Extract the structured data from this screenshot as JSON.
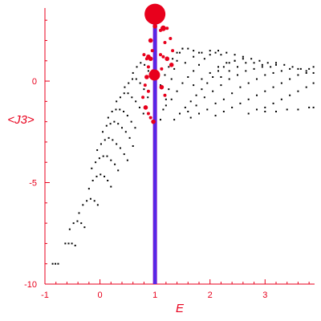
{
  "chart_data": {
    "type": "scatter",
    "title": "",
    "xlabel": "E",
    "ylabel": "<J3>",
    "xlim": [
      -1,
      3.9
    ],
    "ylim": [
      -10,
      3.6
    ],
    "x_ticks": [
      -1,
      0,
      1,
      2,
      3
    ],
    "y_ticks": [
      0,
      -5,
      -10
    ],
    "grid": false,
    "colors": {
      "axis": "#e8001c",
      "points": "#000000",
      "highlight": "#e8001c",
      "marker_line": "#6f1bd9",
      "marker_line_core": "#2a3cff"
    },
    "vertical_marker": {
      "x": 1.0
    },
    "series": [
      {
        "points": [
          [
            -0.86,
            -9.0
          ],
          [
            -0.81,
            -9.0
          ],
          [
            -0.76,
            -9.0
          ],
          [
            -0.63,
            -8.0
          ],
          [
            -0.57,
            -8.0
          ],
          [
            -0.51,
            -8.0
          ],
          [
            -0.45,
            -8.1
          ],
          [
            -0.55,
            -7.3
          ],
          [
            -0.48,
            -7.0
          ],
          [
            -0.41,
            -6.9
          ],
          [
            -0.34,
            -7.0
          ],
          [
            -0.28,
            -7.2
          ],
          [
            -0.38,
            -6.5
          ],
          [
            -0.31,
            -6.1
          ],
          [
            -0.24,
            -5.9
          ],
          [
            -0.17,
            -5.8
          ],
          [
            -0.1,
            -5.9
          ],
          [
            -0.04,
            -6.1
          ],
          [
            -0.2,
            -5.3
          ],
          [
            -0.13,
            -4.9
          ],
          [
            -0.06,
            -4.7
          ],
          [
            0.01,
            -4.6
          ],
          [
            0.08,
            -4.7
          ],
          [
            0.14,
            -4.9
          ],
          [
            0.2,
            -5.2
          ],
          [
            -0.15,
            -4.3
          ],
          [
            -0.08,
            -4.0
          ],
          [
            -0.01,
            -3.8
          ],
          [
            0.06,
            -3.7
          ],
          [
            0.13,
            -3.7
          ],
          [
            0.2,
            -3.9
          ],
          [
            0.27,
            -4.1
          ],
          [
            0.33,
            -4.4
          ],
          [
            -0.05,
            -3.4
          ],
          [
            0.02,
            -3.1
          ],
          [
            0.09,
            -2.9
          ],
          [
            0.16,
            -2.8
          ],
          [
            0.23,
            -2.9
          ],
          [
            0.3,
            -3.1
          ],
          [
            0.37,
            -3.3
          ],
          [
            0.44,
            -3.6
          ],
          [
            0.5,
            -3.9
          ],
          [
            0.05,
            -2.5
          ],
          [
            0.12,
            -2.2
          ],
          [
            0.19,
            -2.1
          ],
          [
            0.26,
            -2.0
          ],
          [
            0.33,
            -2.1
          ],
          [
            0.4,
            -2.3
          ],
          [
            0.47,
            -2.5
          ],
          [
            0.54,
            -2.8
          ],
          [
            0.6,
            -3.2
          ],
          [
            0.15,
            -1.8
          ],
          [
            0.22,
            -1.5
          ],
          [
            0.29,
            -1.4
          ],
          [
            0.36,
            -1.4
          ],
          [
            0.43,
            -1.5
          ],
          [
            0.5,
            -1.7
          ],
          [
            0.57,
            -2.0
          ],
          [
            0.64,
            -2.3
          ],
          [
            0.3,
            -1.0
          ],
          [
            0.37,
            -0.8
          ],
          [
            0.44,
            -0.6
          ],
          [
            0.51,
            -0.6
          ],
          [
            0.58,
            -0.8
          ],
          [
            0.65,
            -1.0
          ],
          [
            0.72,
            -1.3
          ],
          [
            0.79,
            -1.6
          ],
          [
            0.45,
            -0.3
          ],
          [
            0.52,
            -0.1
          ],
          [
            0.59,
            0.1
          ],
          [
            0.66,
            0.1
          ],
          [
            0.73,
            -0.1
          ],
          [
            0.8,
            -0.4
          ],
          [
            0.87,
            -0.8
          ],
          [
            0.6,
            0.4
          ],
          [
            0.67,
            0.7
          ],
          [
            0.74,
            0.9
          ],
          [
            0.81,
            0.8
          ],
          [
            0.88,
            0.5
          ],
          [
            1.1,
            -1.9
          ],
          [
            1.15,
            -1.4
          ],
          [
            1.2,
            -0.9
          ],
          [
            1.25,
            -0.4
          ],
          [
            1.3,
            0.1
          ],
          [
            1.35,
            0.6
          ],
          [
            1.4,
            1.0
          ],
          [
            1.45,
            1.4
          ],
          [
            1.5,
            1.6
          ],
          [
            1.1,
            -0.2
          ],
          [
            1.18,
            0.3
          ],
          [
            1.25,
            0.7
          ],
          [
            1.32,
            1.1
          ],
          [
            1.4,
            1.4
          ],
          [
            1.5,
            1.6
          ],
          [
            1.6,
            1.6
          ],
          [
            1.7,
            1.5
          ],
          [
            1.8,
            1.4
          ],
          [
            1.35,
            -1.9
          ],
          [
            1.45,
            -1.6
          ],
          [
            1.55,
            -1.3
          ],
          [
            1.65,
            -1.0
          ],
          [
            1.75,
            -0.7
          ],
          [
            1.85,
            -0.4
          ],
          [
            1.95,
            -0.1
          ],
          [
            2.05,
            0.2
          ],
          [
            2.15,
            0.5
          ],
          [
            2.25,
            0.7
          ],
          [
            2.35,
            0.9
          ],
          [
            2.45,
            1.0
          ],
          [
            1.2,
            -1.2
          ],
          [
            1.3,
            -0.9
          ],
          [
            1.4,
            -0.5
          ],
          [
            1.5,
            -0.1
          ],
          [
            1.6,
            0.2
          ],
          [
            1.7,
            0.5
          ],
          [
            1.8,
            0.8
          ],
          [
            1.9,
            1.1
          ],
          [
            2.0,
            1.3
          ],
          [
            2.1,
            1.4
          ],
          [
            2.2,
            1.3
          ],
          [
            1.6,
            -1.5
          ],
          [
            1.75,
            -1.2
          ],
          [
            1.9,
            -0.8
          ],
          [
            2.05,
            -0.5
          ],
          [
            2.2,
            -0.2
          ],
          [
            2.35,
            0.1
          ],
          [
            2.5,
            0.3
          ],
          [
            2.65,
            0.5
          ],
          [
            2.8,
            0.6
          ],
          [
            2.95,
            0.7
          ],
          [
            1.7,
            -0.2
          ],
          [
            1.85,
            0.1
          ],
          [
            2.0,
            0.4
          ],
          [
            2.15,
            0.7
          ],
          [
            2.3,
            0.9
          ],
          [
            2.45,
            1.0
          ],
          [
            2.6,
            1.1
          ],
          [
            2.75,
            1.1
          ],
          [
            2.9,
            1.0
          ],
          [
            3.05,
            0.9
          ],
          [
            3.2,
            0.8
          ],
          [
            1.55,
            0.9
          ],
          [
            1.7,
            1.2
          ],
          [
            1.85,
            1.4
          ],
          [
            2.0,
            1.5
          ],
          [
            2.15,
            1.5
          ],
          [
            2.3,
            1.4
          ],
          [
            2.45,
            1.3
          ],
          [
            2.6,
            1.2
          ],
          [
            2.1,
            -1.7
          ],
          [
            2.25,
            -1.5
          ],
          [
            2.4,
            -1.3
          ],
          [
            2.55,
            -1.1
          ],
          [
            2.7,
            -0.9
          ],
          [
            2.85,
            -0.7
          ],
          [
            3.0,
            -0.5
          ],
          [
            3.15,
            -0.3
          ],
          [
            3.3,
            -0.1
          ],
          [
            3.45,
            0.1
          ],
          [
            3.6,
            0.3
          ],
          [
            3.75,
            0.4
          ],
          [
            2.4,
            -0.6
          ],
          [
            2.55,
            -0.3
          ],
          [
            2.7,
            -0.1
          ],
          [
            2.85,
            0.1
          ],
          [
            3.0,
            0.3
          ],
          [
            3.15,
            0.4
          ],
          [
            3.3,
            0.5
          ],
          [
            3.45,
            0.6
          ],
          [
            3.6,
            0.6
          ],
          [
            3.75,
            0.5
          ],
          [
            3.88,
            0.4
          ],
          [
            2.7,
            -1.6
          ],
          [
            2.85,
            -1.4
          ],
          [
            3.0,
            -1.3
          ],
          [
            3.15,
            -1.1
          ],
          [
            3.3,
            -0.9
          ],
          [
            3.45,
            -0.7
          ],
          [
            3.6,
            -0.5
          ],
          [
            3.75,
            -0.3
          ],
          [
            3.88,
            -0.1
          ],
          [
            2.2,
            0.2
          ],
          [
            2.35,
            0.5
          ],
          [
            2.5,
            0.7
          ],
          [
            2.65,
            0.9
          ],
          [
            2.8,
            0.9
          ],
          [
            2.95,
            0.8
          ],
          [
            3.1,
            0.7
          ],
          [
            3.0,
            -1.5
          ],
          [
            3.2,
            -1.5
          ],
          [
            3.4,
            -1.4
          ],
          [
            3.6,
            -1.4
          ],
          [
            3.8,
            -1.3
          ],
          [
            3.88,
            -1.3
          ],
          [
            3.2,
            0.9
          ],
          [
            3.35,
            0.8
          ],
          [
            3.5,
            0.7
          ],
          [
            3.65,
            0.6
          ],
          [
            3.8,
            0.6
          ],
          [
            3.88,
            0.7
          ],
          [
            1.65,
            -1.8
          ],
          [
            1.8,
            -1.6
          ],
          [
            1.95,
            -1.4
          ],
          [
            2.1,
            -1.1
          ],
          [
            2.25,
            -0.9
          ]
        ]
      },
      {
        "points": [
          [
            1.0,
            3.3
          ],
          [
            0.93,
            3.2
          ],
          [
            1.07,
            3.2
          ],
          [
            1.15,
            2.6
          ],
          [
            1.22,
            2.6
          ],
          [
            1.1,
            2.5
          ],
          [
            1.0,
            2.7
          ],
          [
            1.28,
            2.1
          ],
          [
            1.18,
            1.9
          ],
          [
            0.92,
            2.0
          ],
          [
            0.8,
            1.3
          ],
          [
            0.85,
            1.1
          ],
          [
            0.88,
            1.2
          ],
          [
            1.1,
            1.3
          ],
          [
            1.15,
            1.2
          ],
          [
            1.22,
            1.1
          ],
          [
            1.32,
            1.5
          ],
          [
            0.95,
            1.5
          ],
          [
            0.92,
            1.1
          ],
          [
            0.88,
            0.7
          ],
          [
            1.12,
            0.6
          ],
          [
            1.3,
            0.8
          ],
          [
            0.96,
            0.5
          ],
          [
            1.02,
            0.4
          ],
          [
            0.85,
            0.2
          ],
          [
            0.82,
            -0.2
          ],
          [
            0.88,
            -0.5
          ],
          [
            1.12,
            -0.3
          ],
          [
            1.18,
            -0.7
          ],
          [
            0.78,
            -0.8
          ],
          [
            0.83,
            -1.3
          ],
          [
            0.88,
            -1.6
          ],
          [
            0.92,
            -1.8
          ],
          [
            0.97,
            -2.0
          ],
          [
            0.99,
            0.3
          ]
        ]
      }
    ]
  }
}
